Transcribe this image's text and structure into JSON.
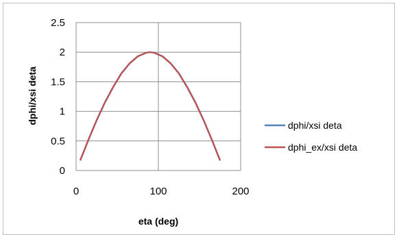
{
  "chart_data": {
    "type": "line",
    "xlabel": "eta (deg)",
    "ylabel": "dphi/xsi deta",
    "xlim": [
      0,
      200
    ],
    "ylim": [
      0,
      2.5
    ],
    "x_ticks": [
      "0",
      "100",
      "200"
    ],
    "y_ticks": [
      "0",
      "0.5",
      "1",
      "1.5",
      "2",
      "2.5"
    ],
    "grid": true,
    "legend_position": "right",
    "series": [
      {
        "name": "dphi/xsi deta",
        "color": "#4f81bd",
        "x": [
          5,
          15,
          25,
          35,
          45,
          55,
          65,
          75,
          85,
          90,
          95,
          105,
          115,
          125,
          135,
          145,
          155,
          165,
          175
        ],
        "y": [
          0.17,
          0.52,
          0.85,
          1.15,
          1.41,
          1.64,
          1.81,
          1.93,
          1.99,
          2.0,
          1.99,
          1.93,
          1.81,
          1.64,
          1.41,
          1.15,
          0.85,
          0.52,
          0.17
        ]
      },
      {
        "name": "dphi_ex/xsi deta",
        "color": "#c0504d",
        "x": [
          5,
          15,
          25,
          35,
          45,
          55,
          65,
          75,
          85,
          90,
          95,
          105,
          115,
          125,
          135,
          145,
          155,
          165,
          175
        ],
        "y": [
          0.17,
          0.52,
          0.85,
          1.15,
          1.41,
          1.64,
          1.81,
          1.93,
          1.99,
          2.0,
          1.99,
          1.93,
          1.81,
          1.64,
          1.41,
          1.15,
          0.85,
          0.52,
          0.17
        ]
      }
    ]
  }
}
